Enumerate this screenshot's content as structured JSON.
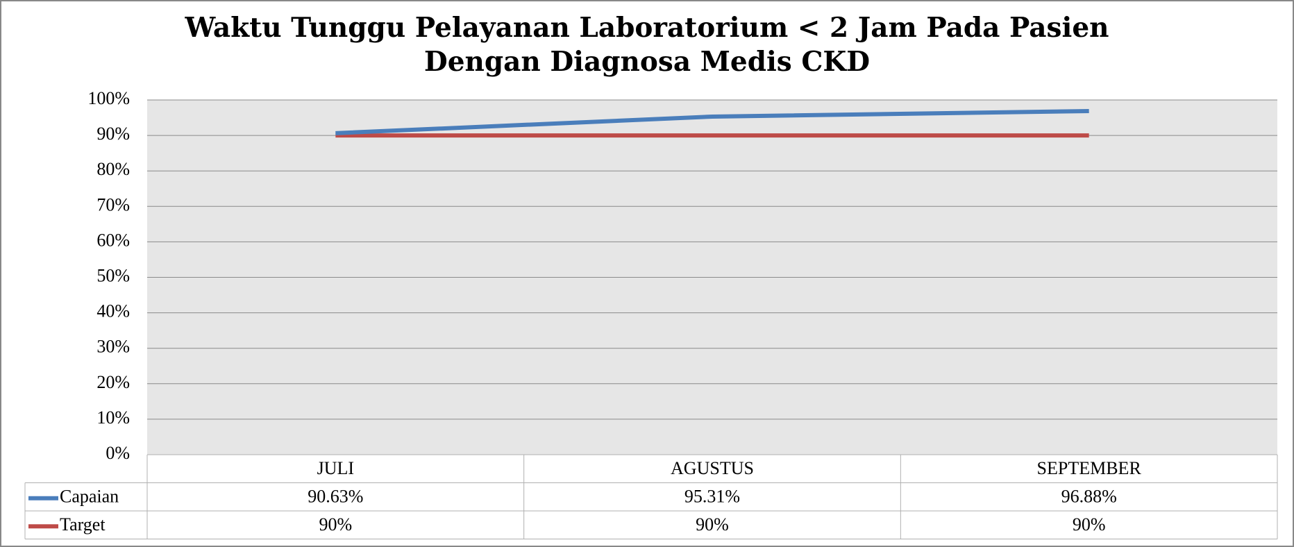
{
  "chart_data": {
    "type": "line",
    "title": [
      "Waktu Tunggu Pelayanan Laboratorium < 2 Jam Pada Pasien",
      "Dengan Diagnosa Medis CKD"
    ],
    "categories": [
      "JULI",
      "AGUSTUS",
      "SEPTEMBER"
    ],
    "series": [
      {
        "name": "Capaian",
        "color": "#4a7ebb",
        "values": [
          90.63,
          95.31,
          96.88
        ],
        "value_labels": [
          "90.63%",
          "95.31%",
          "96.88%"
        ]
      },
      {
        "name": "Target",
        "color": "#be4b48",
        "values": [
          90,
          90,
          90
        ],
        "value_labels": [
          "90%",
          "90%",
          "90%"
        ]
      }
    ],
    "ylim": [
      0,
      100
    ],
    "yticks": [
      {
        "value": 0,
        "label": "0%"
      },
      {
        "value": 10,
        "label": "10%"
      },
      {
        "value": 20,
        "label": "20%"
      },
      {
        "value": 30,
        "label": "30%"
      },
      {
        "value": 40,
        "label": "40%"
      },
      {
        "value": 50,
        "label": "50%"
      },
      {
        "value": 60,
        "label": "60%"
      },
      {
        "value": 70,
        "label": "70%"
      },
      {
        "value": 80,
        "label": "80%"
      },
      {
        "value": 90,
        "label": "90%"
      },
      {
        "value": 100,
        "label": "100%"
      }
    ],
    "grid": true
  }
}
